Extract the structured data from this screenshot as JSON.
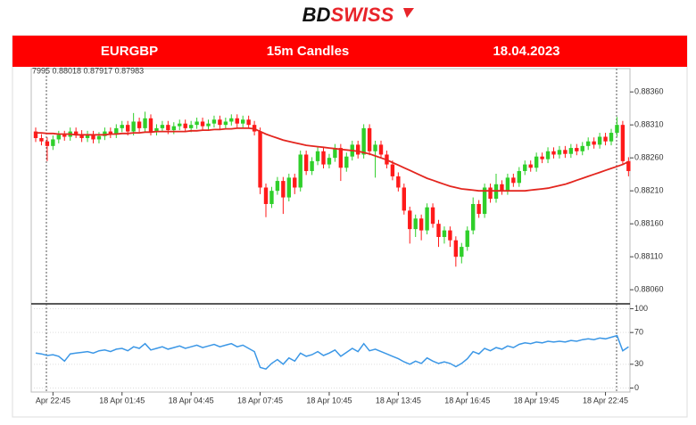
{
  "brand_parts": [
    "BD",
    "SWISS"
  ],
  "banner": {
    "symbol": "EURGBP",
    "timeframe": "15m Candles",
    "date": "18.04.2023"
  },
  "chart_data": [
    {
      "type": "candlestick",
      "readout": "7995 0.88018 0.87917 0.87983",
      "up_color": "#2fcf2a",
      "down_color": "#ff1a1a",
      "open": [
        0.883,
        0.8829,
        0.88285,
        0.88278,
        0.88288,
        0.88295,
        0.88292,
        0.883,
        0.88296,
        0.8829,
        0.88295,
        0.88288,
        0.88293,
        0.883,
        0.88296,
        0.88305,
        0.8831,
        0.883,
        0.88315,
        0.88305,
        0.8832,
        0.883,
        0.88305,
        0.8831,
        0.88302,
        0.88308,
        0.88312,
        0.88305,
        0.8831,
        0.88315,
        0.88308,
        0.88312,
        0.88318,
        0.8831,
        0.88315,
        0.8832,
        0.88312,
        0.88318,
        0.8831,
        0.883,
        0.88215,
        0.8819,
        0.8821,
        0.88225,
        0.882,
        0.8823,
        0.88215,
        0.88265,
        0.8824,
        0.88255,
        0.8827,
        0.8825,
        0.8826,
        0.88275,
        0.88245,
        0.88262,
        0.8828,
        0.88265,
        0.88305,
        0.8827,
        0.8828,
        0.88265,
        0.8825,
        0.88232,
        0.88215,
        0.8818,
        0.88152,
        0.88168,
        0.8815,
        0.88185,
        0.8816,
        0.8814,
        0.8815,
        0.88135,
        0.8811,
        0.88125,
        0.8815,
        0.8819,
        0.88175,
        0.88215,
        0.88198,
        0.8822,
        0.8821,
        0.8823,
        0.88222,
        0.8824,
        0.8825,
        0.88245,
        0.88262,
        0.88258,
        0.8827,
        0.88265,
        0.88272,
        0.88266,
        0.88275,
        0.8827,
        0.88278,
        0.88285,
        0.8828,
        0.88292,
        0.88285,
        0.88298,
        0.8831,
        0.88255
      ],
      "high": [
        0.88306,
        0.88296,
        0.88291,
        0.88294,
        0.88301,
        0.88301,
        0.88306,
        0.88306,
        0.88302,
        0.88301,
        0.88301,
        0.88299,
        0.88306,
        0.88306,
        0.88311,
        0.88316,
        0.88316,
        0.88328,
        0.88321,
        0.8833,
        0.88326,
        0.88311,
        0.88316,
        0.88316,
        0.88314,
        0.88318,
        0.88318,
        0.88316,
        0.88321,
        0.88321,
        0.88318,
        0.88324,
        0.88324,
        0.88321,
        0.88326,
        0.88326,
        0.88324,
        0.88324,
        0.88316,
        0.88306,
        0.88221,
        0.88216,
        0.88231,
        0.88231,
        0.88236,
        0.88236,
        0.88271,
        0.88271,
        0.88261,
        0.88276,
        0.88276,
        0.88266,
        0.88281,
        0.88281,
        0.88268,
        0.88286,
        0.88286,
        0.88311,
        0.88311,
        0.88286,
        0.88286,
        0.88271,
        0.88256,
        0.88238,
        0.88221,
        0.88186,
        0.88174,
        0.88174,
        0.88191,
        0.88191,
        0.88166,
        0.88156,
        0.88156,
        0.88141,
        0.88131,
        0.88156,
        0.882,
        0.88196,
        0.88221,
        0.88221,
        0.88236,
        0.88226,
        0.88236,
        0.88236,
        0.88246,
        0.88256,
        0.88256,
        0.88268,
        0.88268,
        0.88276,
        0.88276,
        0.88278,
        0.88278,
        0.88281,
        0.88281,
        0.88284,
        0.88291,
        0.88291,
        0.88298,
        0.88298,
        0.88304,
        0.88322,
        0.88316,
        0.88261
      ],
      "low": [
        0.88284,
        0.88279,
        0.88255,
        0.88272,
        0.88282,
        0.88286,
        0.88286,
        0.8829,
        0.88284,
        0.88284,
        0.88282,
        0.88282,
        0.88287,
        0.8829,
        0.8829,
        0.88299,
        0.88294,
        0.88294,
        0.88299,
        0.88299,
        0.88294,
        0.88294,
        0.88299,
        0.88296,
        0.88296,
        0.88302,
        0.88299,
        0.88299,
        0.88304,
        0.88302,
        0.88302,
        0.88306,
        0.88304,
        0.88304,
        0.88309,
        0.88306,
        0.88306,
        0.88304,
        0.88294,
        0.88205,
        0.8817,
        0.88184,
        0.88204,
        0.88175,
        0.88194,
        0.88205,
        0.88209,
        0.88234,
        0.88234,
        0.88249,
        0.88244,
        0.88244,
        0.88254,
        0.88225,
        0.88239,
        0.88256,
        0.88259,
        0.88259,
        0.88264,
        0.8823,
        0.88259,
        0.88244,
        0.88226,
        0.88209,
        0.88174,
        0.8813,
        0.8814,
        0.88135,
        0.88144,
        0.88154,
        0.88125,
        0.8813,
        0.88125,
        0.88095,
        0.881,
        0.88119,
        0.88144,
        0.88169,
        0.88169,
        0.88192,
        0.88192,
        0.88204,
        0.88204,
        0.88216,
        0.88216,
        0.88234,
        0.88239,
        0.88239,
        0.88252,
        0.88252,
        0.88259,
        0.88259,
        0.8826,
        0.8826,
        0.88264,
        0.88264,
        0.88272,
        0.88274,
        0.88274,
        0.88279,
        0.88279,
        0.88292,
        0.88249,
        0.88232
      ],
      "close": [
        0.8829,
        0.88285,
        0.88278,
        0.88288,
        0.88295,
        0.88292,
        0.883,
        0.88296,
        0.8829,
        0.88295,
        0.88288,
        0.88293,
        0.883,
        0.88296,
        0.88305,
        0.8831,
        0.883,
        0.88315,
        0.88305,
        0.8832,
        0.883,
        0.88305,
        0.8831,
        0.88302,
        0.88308,
        0.88312,
        0.88305,
        0.8831,
        0.88315,
        0.88308,
        0.88312,
        0.88318,
        0.8831,
        0.88315,
        0.8832,
        0.88312,
        0.88318,
        0.8831,
        0.883,
        0.88215,
        0.8819,
        0.8821,
        0.88225,
        0.882,
        0.8823,
        0.88215,
        0.88265,
        0.8824,
        0.88255,
        0.8827,
        0.8825,
        0.8826,
        0.88275,
        0.88245,
        0.88262,
        0.8828,
        0.88265,
        0.88305,
        0.8827,
        0.8828,
        0.88265,
        0.8825,
        0.88232,
        0.88215,
        0.8818,
        0.88152,
        0.88168,
        0.8815,
        0.88185,
        0.8816,
        0.8814,
        0.8815,
        0.88135,
        0.8811,
        0.88125,
        0.8815,
        0.8819,
        0.88175,
        0.88215,
        0.88198,
        0.8822,
        0.8821,
        0.8823,
        0.88222,
        0.8824,
        0.8825,
        0.88245,
        0.88262,
        0.88258,
        0.8827,
        0.88265,
        0.88272,
        0.88266,
        0.88275,
        0.8827,
        0.88278,
        0.88285,
        0.8828,
        0.88292,
        0.88285,
        0.88298,
        0.8831,
        0.88255,
        0.8824
      ],
      "ma": {
        "color": "#e3261f",
        "values": [
          0.88298,
          0.88298,
          0.88297,
          0.88297,
          0.88296,
          0.88296,
          0.88296,
          0.88295,
          0.88295,
          0.88295,
          0.88295,
          0.88295,
          0.88295,
          0.88296,
          0.88296,
          0.88297,
          0.88297,
          0.88298,
          0.88298,
          0.88299,
          0.88299,
          0.883,
          0.883,
          0.883,
          0.883,
          0.883,
          0.883,
          0.88301,
          0.88301,
          0.88302,
          0.88302,
          0.88303,
          0.88303,
          0.88304,
          0.88304,
          0.88305,
          0.88305,
          0.88305,
          0.88304,
          0.883,
          0.88296,
          0.88293,
          0.8829,
          0.88287,
          0.88285,
          0.88283,
          0.88281,
          0.88279,
          0.88278,
          0.88277,
          0.88276,
          0.88275,
          0.88274,
          0.88273,
          0.88272,
          0.88271,
          0.8827,
          0.88268,
          0.88266,
          0.88263,
          0.8826,
          0.88257,
          0.88253,
          0.88249,
          0.88245,
          0.88241,
          0.88237,
          0.88233,
          0.88229,
          0.88226,
          0.88223,
          0.8822,
          0.88217,
          0.88215,
          0.88213,
          0.88212,
          0.88211,
          0.8821,
          0.8821,
          0.8821,
          0.8821,
          0.8821,
          0.8821,
          0.8821,
          0.8821,
          0.8821,
          0.88211,
          0.88212,
          0.88213,
          0.88214,
          0.88216,
          0.88218,
          0.8822,
          0.88223,
          0.88226,
          0.88229,
          0.88232,
          0.88235,
          0.88238,
          0.88241,
          0.88244,
          0.88247,
          0.8825,
          0.88254
        ]
      },
      "ylim": [
        0.8804,
        0.88394
      ],
      "yticks": [
        {
          "value": 0.8806,
          "label": "0.88060"
        },
        {
          "value": 0.8811,
          "label": "0.88110"
        },
        {
          "value": 0.8816,
          "label": "0.88160"
        },
        {
          "value": 0.8821,
          "label": "0.88210"
        },
        {
          "value": 0.8826,
          "label": "0.88260"
        },
        {
          "value": 0.8831,
          "label": "0.88310"
        },
        {
          "value": 0.8836,
          "label": "0.88360"
        }
      ]
    },
    {
      "type": "line",
      "color": "#3b97e6",
      "categories": [
        null,
        null,
        null,
        "Apr 22:45",
        null,
        null,
        null,
        null,
        null,
        null,
        null,
        null,
        null,
        null,
        null,
        "18 Apr 01:45",
        null,
        null,
        null,
        null,
        null,
        null,
        null,
        null,
        null,
        null,
        null,
        "18 Apr 04:45",
        null,
        null,
        null,
        null,
        null,
        null,
        null,
        null,
        null,
        null,
        null,
        "18 Apr 07:45",
        null,
        null,
        null,
        null,
        null,
        null,
        null,
        null,
        null,
        null,
        null,
        "18 Apr 10:45",
        null,
        null,
        null,
        null,
        null,
        null,
        null,
        null,
        null,
        null,
        null,
        "18 Apr 13:45",
        null,
        null,
        null,
        null,
        null,
        null,
        null,
        null,
        null,
        null,
        null,
        "18 Apr 16:45",
        null,
        null,
        null,
        null,
        null,
        null,
        null,
        null,
        null,
        null,
        null,
        "18 Apr 19:45",
        null,
        null,
        null,
        null,
        null,
        null,
        null,
        null,
        null,
        null,
        null,
        "18 Apr 22:45",
        null,
        null,
        null,
        null
      ],
      "values": [
        44,
        43,
        41,
        42,
        40,
        34,
        43,
        44,
        45,
        46,
        44,
        47,
        48,
        46,
        49,
        50,
        47,
        52,
        50,
        56,
        48,
        50,
        52,
        49,
        51,
        53,
        50,
        52,
        54,
        51,
        53,
        55,
        52,
        54,
        56,
        52,
        54,
        50,
        46,
        26,
        24,
        31,
        36,
        30,
        38,
        34,
        44,
        40,
        42,
        46,
        41,
        44,
        48,
        40,
        45,
        50,
        46,
        56,
        47,
        49,
        46,
        43,
        40,
        37,
        33,
        30,
        34,
        31,
        38,
        34,
        31,
        33,
        31,
        27,
        31,
        37,
        46,
        43,
        50,
        47,
        51,
        49,
        53,
        51,
        55,
        57,
        56,
        58,
        57,
        59,
        58,
        59,
        58,
        60,
        59,
        61,
        62,
        61,
        63,
        62,
        64,
        66,
        47,
        52
      ],
      "ylim": [
        -5,
        105
      ],
      "yticks": [
        0,
        30,
        70,
        100
      ]
    }
  ]
}
